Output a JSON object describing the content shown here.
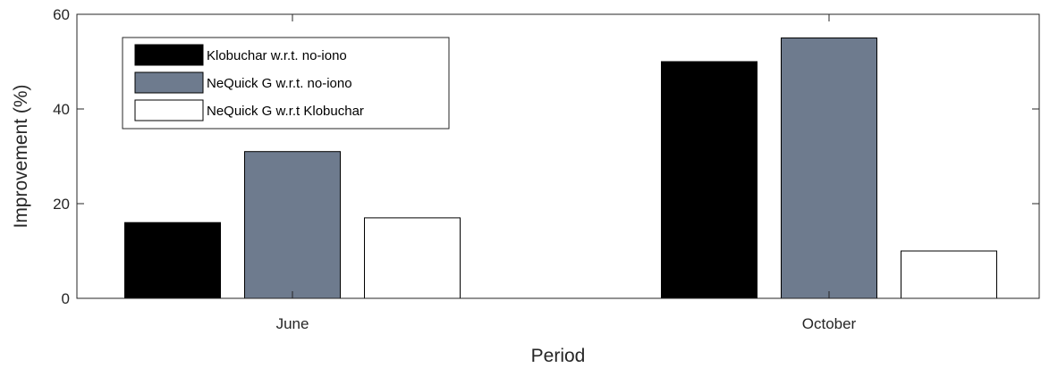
{
  "chart_data": {
    "type": "bar",
    "title": "",
    "xlabel": "Period",
    "ylabel": "Improvement (%)",
    "categories": [
      "June",
      "October"
    ],
    "ylim": [
      0,
      60
    ],
    "yticks": [
      0,
      20,
      40,
      60
    ],
    "grid": false,
    "legend_position": "top-left",
    "series": [
      {
        "name": "Klobuchar w.r.t. no-iono",
        "color": "#000000",
        "values": [
          16,
          50
        ]
      },
      {
        "name": "NeQuick G w.r.t. no-iono",
        "color": "#6e7b8e",
        "values": [
          31,
          55
        ]
      },
      {
        "name": "NeQuick G w.r.t Klobuchar",
        "color": "#ffffff",
        "values": [
          17,
          10
        ]
      }
    ]
  }
}
